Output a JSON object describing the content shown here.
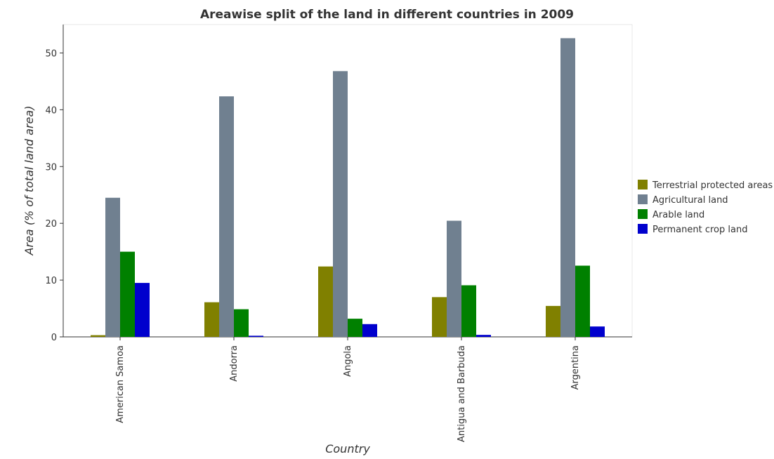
{
  "chart_data": {
    "type": "bar",
    "title": "Areawise split of the land in different countries in 2009",
    "xlabel": "Country",
    "ylabel": "Area (% of total land area)",
    "ylim": [
      0,
      55
    ],
    "yticks": [
      0,
      10,
      20,
      30,
      40,
      50
    ],
    "categories": [
      "American Samoa",
      "Andorra",
      "Angola",
      "Antigua and Barbuda",
      "Argentina"
    ],
    "series": [
      {
        "name": "Terrestrial protected areas",
        "color": "#808000",
        "values": [
          0.3,
          6.1,
          12.4,
          7.0,
          5.45
        ]
      },
      {
        "name": "Agricultural land",
        "color": "#708090",
        "values": [
          24.5,
          42.36,
          46.8,
          20.45,
          52.6
        ]
      },
      {
        "name": "Arable land",
        "color": "#008000",
        "values": [
          15.0,
          4.87,
          3.2,
          9.09,
          12.54
        ]
      },
      {
        "name": "Permanent crop land",
        "color": "#0000cd",
        "values": [
          9.5,
          0.2,
          2.25,
          0.35,
          1.83
        ]
      }
    ],
    "legend_position": "right",
    "grid": false
  }
}
